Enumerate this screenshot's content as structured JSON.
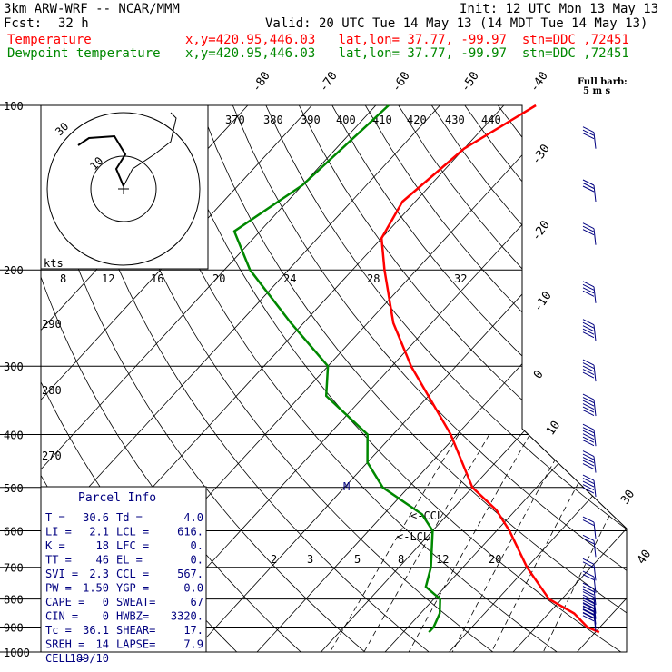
{
  "header": {
    "model": "3km ARW-WRF -- NCAR/MMM",
    "init": "Init: 12 UTC Mon 13 May 13",
    "fcst_label": "Fcst:",
    "fcst_value": "32 h",
    "valid": "Valid: 20 UTC Tue 14 May 13 (14 MDT Tue 14 May 13)",
    "temp_label": "Temperature",
    "temp_loc": "x,y=420.95,446.03   lat,lon= 37.77, -99.97  stn=DDC ,72451",
    "dew_label": "Dewpoint temperature",
    "dew_loc": "x,y=420.95,446.03   lat,lon= 37.77, -99.97  stn=DDC ,72451"
  },
  "colors": {
    "temperature": "#ff0000",
    "dewpoint": "#008800",
    "barbs": "#000080",
    "grid": "#000000"
  },
  "chart_data": {
    "type": "line",
    "title": "",
    "pressure_levels": [
      100,
      200,
      300,
      400,
      500,
      600,
      700,
      800,
      900,
      1000
    ],
    "skewT_isotherms_C": [
      -40,
      -30,
      -20,
      -10,
      0,
      10,
      20,
      30,
      40
    ],
    "top_isotherm_labels": [
      "-80",
      "-70",
      "-60",
      "-50",
      "-40"
    ],
    "theta_labels": [
      "370",
      "380",
      "390",
      "400",
      "410",
      "420",
      "430",
      "440"
    ],
    "theta_left_labels": [
      "290",
      "280",
      "270"
    ],
    "mixing_ratio_labels": [
      "2",
      "3",
      "5",
      "8",
      "12",
      "20"
    ],
    "ccl_label": "CCL",
    "lcl_label": "LCL",
    "m_label": "M",
    "barb_legend": [
      "Full barb:",
      "5 m s"
    ],
    "series": [
      {
        "name": "Temperature",
        "points": [
          [
            100,
            -55
          ],
          [
            120,
            -60
          ],
          [
            150,
            -62
          ],
          [
            175,
            -60
          ],
          [
            200,
            -55
          ],
          [
            250,
            -46
          ],
          [
            300,
            -37
          ],
          [
            400,
            -21
          ],
          [
            500,
            -10
          ],
          [
            550,
            -3
          ],
          [
            600,
            2
          ],
          [
            700,
            10
          ],
          [
            800,
            18
          ],
          [
            850,
            24
          ],
          [
            900,
            28
          ],
          [
            920,
            30.6
          ]
        ]
      },
      {
        "name": "Dewpoint temperature",
        "points": [
          [
            100,
            -78
          ],
          [
            140,
            -80
          ],
          [
            170,
            -84
          ],
          [
            200,
            -76
          ],
          [
            250,
            -62
          ],
          [
            300,
            -50
          ],
          [
            340,
            -46
          ],
          [
            400,
            -34
          ],
          [
            450,
            -30
          ],
          [
            500,
            -24
          ],
          [
            560,
            -14
          ],
          [
            600,
            -10
          ],
          [
            700,
            -5
          ],
          [
            760,
            -3
          ],
          [
            800,
            1
          ],
          [
            850,
            3
          ],
          [
            900,
            4
          ],
          [
            920,
            4
          ]
        ]
      }
    ],
    "hodograph": {
      "units_label": "kts",
      "speed_rings": [
        "8",
        "12",
        "16",
        "20",
        "24",
        "28",
        "32"
      ],
      "ring_labels": [
        "10",
        "30"
      ]
    },
    "wind_barbs": {
      "pressure": [
        120,
        150,
        180,
        230,
        270,
        320,
        370,
        420,
        470,
        520,
        620,
        670,
        740,
        780,
        820,
        850,
        870,
        890,
        905,
        915
      ],
      "speed_kt": [
        25,
        30,
        30,
        40,
        45,
        50,
        55,
        55,
        50,
        45,
        15,
        15,
        15,
        20,
        25,
        25,
        25,
        25,
        25,
        25
      ]
    }
  },
  "parcel_info": {
    "title": "Parcel Info",
    "rows": [
      [
        "T  =",
        "30.6",
        "Td =",
        "4.0"
      ],
      [
        "LI =",
        "2.1",
        "LCL =",
        "616."
      ],
      [
        "K  =",
        "18",
        "LFC =",
        "0."
      ],
      [
        "TT =",
        "46",
        "EL =",
        "0."
      ],
      [
        "SVI =",
        "2.3",
        "CCL =",
        "567."
      ],
      [
        "PW =",
        "1.50",
        "YGP =",
        "0.0"
      ],
      [
        "CAPE =",
        "0",
        "SWEAT=",
        "67"
      ],
      [
        "CIN =",
        "0",
        "HWBZ=",
        "3320."
      ],
      [
        "Tc =",
        "36.1",
        "SHEAR=",
        "17."
      ],
      [
        "SREH =",
        "14",
        "LAPSE=",
        "7.9"
      ],
      [
        "CELL =",
        "189/10",
        "",
        ""
      ]
    ]
  }
}
